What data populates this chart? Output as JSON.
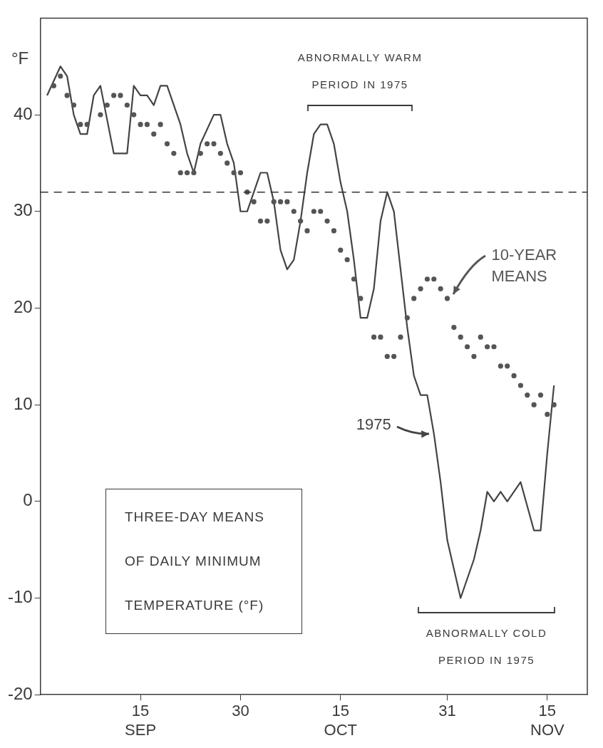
{
  "chart_data": {
    "type": "line",
    "title": "THREE-DAY MEANS OF DAILY MINIMUM TEMPERATURE (°F)",
    "ylabel": "°F",
    "xlim": [
      "--08-31",
      "--11-21"
    ],
    "xticks": [
      {
        "value": "--09-15",
        "label": "15 SEP"
      },
      {
        "value": "--09-30",
        "label": "30"
      },
      {
        "value": "--10-15",
        "label": "15 OCT"
      },
      {
        "value": "--10-31",
        "label": "31"
      },
      {
        "value": "--11-15",
        "label": "15 NOV"
      }
    ],
    "ylim": [
      -20,
      50
    ],
    "yticks": [
      -20,
      -10,
      0,
      10,
      20,
      30,
      40
    ],
    "ref_lines": [
      {
        "axis": "y",
        "value": 32,
        "line_style": "dashed",
        "color": "#333333"
      }
    ],
    "annotations": [
      "ABNORMALLY WARM PERIOD IN 1975",
      "ABNORMALLY COLD PERIOD IN 1975"
    ],
    "series": [
      {
        "name": "10-YEAR MEANS",
        "type": "scatter",
        "marker": "circle",
        "color": "#555555",
        "x": [
          "--09-02",
          "--09-03",
          "--09-04",
          "--09-05",
          "--09-06",
          "--09-07",
          "--09-09",
          "--09-10",
          "--09-11",
          "--09-12",
          "--09-13",
          "--09-14",
          "--09-15",
          "--09-16",
          "--09-17",
          "--09-18",
          "--09-19",
          "--09-20",
          "--09-21",
          "--09-22",
          "--09-23",
          "--09-24",
          "--09-25",
          "--09-26",
          "--09-27",
          "--09-28",
          "--09-29",
          "--09-30",
          "--10-01",
          "--10-02",
          "--10-03",
          "--10-04",
          "--10-05",
          "--10-06",
          "--10-07",
          "--10-08",
          "--10-09",
          "--10-10",
          "--10-11",
          "--10-12",
          "--10-13",
          "--10-14",
          "--10-15",
          "--10-16",
          "--10-17",
          "--10-18",
          "--10-20",
          "--10-21",
          "--10-22",
          "--10-23",
          "--10-24",
          "--10-25",
          "--10-26",
          "--10-27",
          "--10-28",
          "--10-29",
          "--10-30",
          "--10-31",
          "--11-01",
          "--11-02",
          "--11-03",
          "--11-04",
          "--11-05",
          "--11-06",
          "--11-07",
          "--11-08",
          "--11-09",
          "--11-10",
          "--11-11",
          "--11-12",
          "--11-13",
          "--11-14",
          "--11-15",
          "--11-16"
        ],
        "values": [
          43,
          44,
          42,
          41,
          39,
          39,
          40,
          41,
          42,
          42,
          41,
          40,
          39,
          39,
          38,
          39,
          37,
          36,
          34,
          34,
          34,
          36,
          37,
          37,
          36,
          35,
          34,
          34,
          32,
          31,
          29,
          29,
          31,
          31,
          31,
          30,
          29,
          28,
          30,
          30,
          29,
          28,
          26,
          25,
          23,
          21,
          17,
          17,
          15,
          15,
          17,
          19,
          21,
          22,
          23,
          23,
          22,
          21,
          18,
          17,
          16,
          15,
          17,
          16,
          16,
          14,
          14,
          13,
          12,
          11,
          10,
          11,
          9,
          10
        ]
      },
      {
        "name": "1975",
        "type": "line",
        "color": "#444444",
        "x": [
          "--09-01",
          "--09-03",
          "--09-04",
          "--09-05",
          "--09-06",
          "--09-07",
          "--09-08",
          "--09-09",
          "--09-11",
          "--09-13",
          "--09-14",
          "--09-15",
          "--09-16",
          "--09-17",
          "--09-18",
          "--09-19",
          "--09-21",
          "--09-22",
          "--09-23",
          "--09-24",
          "--09-26",
          "--09-27",
          "--09-28",
          "--09-29",
          "--09-30",
          "--10-01",
          "--10-03",
          "--10-04",
          "--10-05",
          "--10-06",
          "--10-07",
          "--10-08",
          "--10-09",
          "--10-10",
          "--10-11",
          "--10-12",
          "--10-13",
          "--10-14",
          "--10-15",
          "--10-16",
          "--10-17",
          "--10-18",
          "--10-19",
          "--10-20",
          "--10-21",
          "--10-22",
          "--10-23",
          "--10-24",
          "--10-25",
          "--10-26",
          "--10-27",
          "--10-28",
          "--10-29",
          "--10-30",
          "--10-31",
          "--11-02",
          "--11-04",
          "--11-05",
          "--11-06",
          "--11-07",
          "--11-08",
          "--11-09",
          "--11-11",
          "--11-13",
          "--11-14",
          "--11-15",
          "--11-16"
        ],
        "values": [
          42,
          45,
          44,
          40,
          38,
          38,
          42,
          43,
          36,
          36,
          43,
          42,
          42,
          41,
          43,
          43,
          39,
          36,
          34,
          37,
          40,
          40,
          37,
          35,
          30,
          30,
          34,
          34,
          31,
          26,
          24,
          25,
          29,
          34,
          38,
          39,
          39,
          37,
          33,
          30,
          25,
          19,
          19,
          22,
          29,
          32,
          30,
          24,
          18,
          13,
          11,
          11,
          7,
          2,
          -4,
          -10,
          -6,
          -3,
          1,
          0,
          1,
          0,
          2,
          -3,
          -3,
          5,
          12
        ]
      }
    ]
  }
}
